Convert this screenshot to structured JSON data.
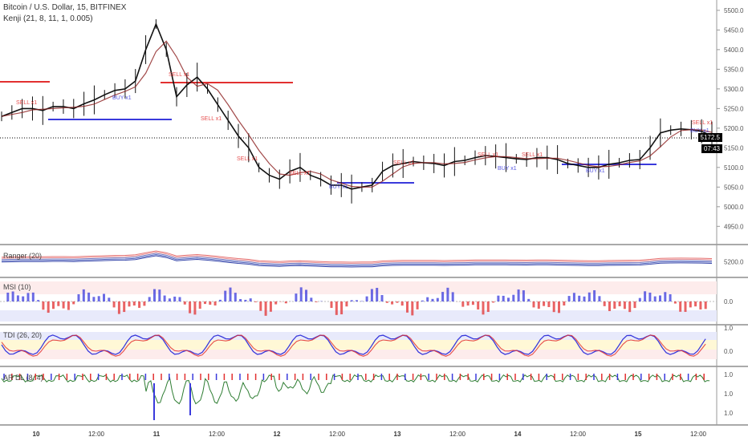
{
  "header": {
    "symbol": "Bitcoin / U.S. Dollar, 15, BITFINEX",
    "indicator": "Kenji (21, 8, 11, 1, 0.005)"
  },
  "price_tags": {
    "last": "5172.5",
    "countdown": "07:43"
  },
  "panes": {
    "ranger": "Ranger (20)",
    "msi": "MSI (10)",
    "tdi": "TDI (26, 20)",
    "ardl": "AR DL (8, 4)"
  },
  "colors": {
    "buy": "#3a3adc",
    "sell": "#e23030",
    "up": "#2e7d32",
    "down": "#c62828"
  },
  "chart_data": [
    {
      "type": "line",
      "pane": "price",
      "ylim": [
        4920,
        5510
      ],
      "y_ticks": [
        "5500.0",
        "5450.0",
        "5400.0",
        "5350.0",
        "5300.0",
        "5250.0",
        "5200.0",
        "5150.0",
        "5100.0",
        "5050.0",
        "5000.0",
        "4950.0"
      ],
      "x_ticks": [
        "10",
        "12:00",
        "11",
        "12:00",
        "12",
        "12:00",
        "13",
        "12:00",
        "14",
        "12:00",
        "15",
        "12:00"
      ],
      "series": [
        {
          "values": [
            5230,
            5240,
            5250,
            5250,
            5245,
            5255,
            5255,
            5250,
            5262,
            5272,
            5285,
            5296,
            5300,
            5320,
            5400,
            5465,
            5400,
            5280,
            5310,
            5330,
            5300,
            5260,
            5220,
            5180,
            5150,
            5100,
            5080,
            5070,
            5090,
            5100,
            5080,
            5070,
            5055,
            5055,
            5045,
            5050,
            5055,
            5090,
            5105,
            5110,
            5115,
            5112,
            5110,
            5105,
            5115,
            5118,
            5125,
            5130,
            5128,
            5125,
            5122,
            5120,
            5125,
            5125,
            5120,
            5110,
            5105,
            5100,
            5100,
            5108,
            5112,
            5118,
            5120,
            5150,
            5188,
            5195,
            5198,
            5196,
            5192,
            5180
          ]
        }
      ],
      "annotations": [
        "BUY x1",
        "SELL x1"
      ]
    },
    {
      "type": "line",
      "pane": "ranger",
      "y_ticks": [
        "5200.0"
      ]
    },
    {
      "type": "bar",
      "pane": "msi",
      "y_ticks": [
        "0.0"
      ]
    },
    {
      "type": "line",
      "pane": "tdi",
      "y_ticks": [
        "1.0",
        "0.0"
      ]
    },
    {
      "type": "line",
      "pane": "ardl",
      "y_ticks": [
        "1.0",
        "1.0",
        "1.0"
      ]
    }
  ]
}
